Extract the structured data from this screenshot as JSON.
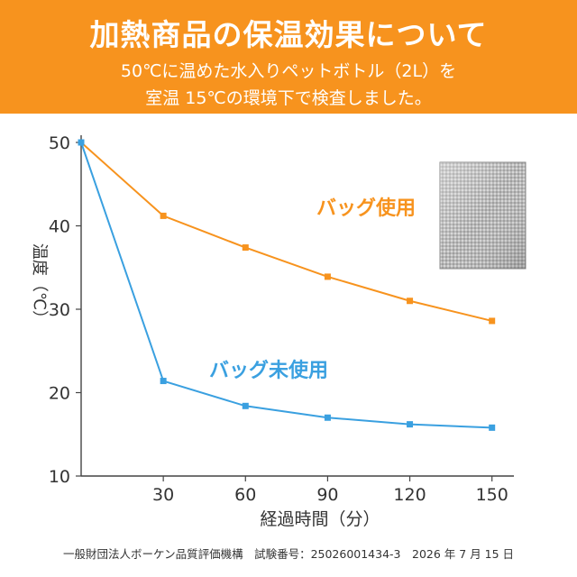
{
  "header": {
    "title": "加熱商品の保温効果について",
    "subtitle_line1": "50℃に温めた水入りペットボトル（2L）を",
    "subtitle_line2": "室温 15℃の環境下で検査しました。"
  },
  "footer": {
    "text": "一般財団法人ボーケン品質評価機構　試験番号：25026001434-3　2026 年 7 月 15 日"
  },
  "colors": {
    "accent": "#f7931e",
    "with_bag": "#f7931e",
    "without_bag": "#3aa0e0",
    "axis": "#444444"
  },
  "image": {
    "icon": "insulated-bag-photo"
  },
  "chart_data": {
    "type": "line",
    "title": "",
    "xlabel": "経過時間（分）",
    "ylabel": "温度（℃）",
    "x": [
      0,
      30,
      60,
      90,
      120,
      150
    ],
    "x_ticks": [
      "30",
      "60",
      "90",
      "120",
      "150"
    ],
    "y_ticks": [
      "10",
      "20",
      "30",
      "40",
      "50"
    ],
    "xlim": [
      0,
      158
    ],
    "ylim": [
      10,
      50
    ],
    "grid": false,
    "series": [
      {
        "name": "バッグ使用",
        "color": "#f7931e",
        "values": [
          50,
          41.2,
          37.4,
          33.9,
          31.0,
          28.6
        ]
      },
      {
        "name": "バッグ未使用",
        "color": "#3aa0e0",
        "values": [
          50,
          21.4,
          18.4,
          17.0,
          16.2,
          15.8
        ]
      }
    ]
  }
}
